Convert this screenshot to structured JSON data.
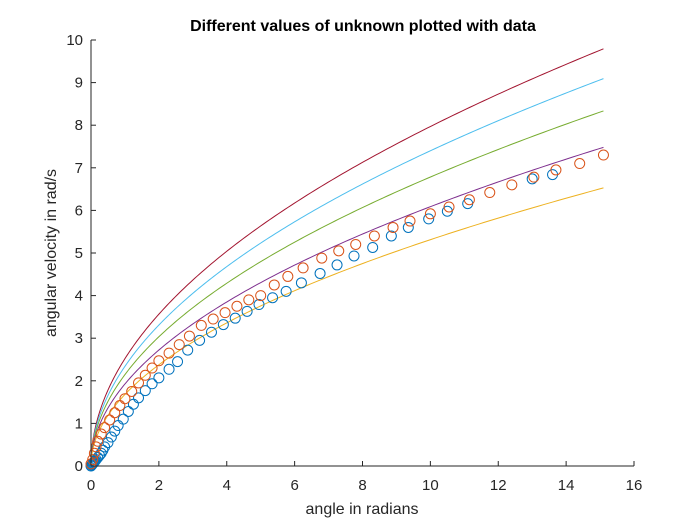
{
  "chart_data": {
    "type": "scatter",
    "title": "Different values of unknown plotted with data",
    "xlabel": "angle in radians",
    "ylabel": "angular velocity in rad/s",
    "xlim": [
      0,
      16
    ],
    "ylim": [
      0,
      10
    ],
    "xticks": [
      0,
      2,
      4,
      6,
      8,
      10,
      12,
      14,
      16
    ],
    "yticks": [
      0,
      1,
      2,
      3,
      4,
      5,
      6,
      7,
      8,
      9,
      10
    ],
    "grid": false,
    "box": false,
    "series": [
      {
        "kind": "scatter",
        "marker": "circle",
        "color": "#0072BD",
        "x": [
          0.0,
          0.02,
          0.04,
          0.06,
          0.08,
          0.1,
          0.12,
          0.15,
          0.2,
          0.25,
          0.3,
          0.35,
          0.4,
          0.5,
          0.6,
          0.7,
          0.8,
          0.95,
          1.1,
          1.25,
          1.4,
          1.6,
          1.8,
          2.0,
          2.3,
          2.55,
          2.85,
          3.2,
          3.55,
          3.9,
          4.25,
          4.6,
          4.95,
          5.35,
          5.75,
          6.2,
          6.75,
          7.25,
          7.75,
          8.3,
          8.85,
          9.35,
          9.95,
          10.5,
          11.1,
          13.0,
          13.6
        ],
        "y": [
          0.0,
          0.02,
          0.04,
          0.06,
          0.08,
          0.1,
          0.12,
          0.15,
          0.2,
          0.25,
          0.3,
          0.37,
          0.45,
          0.55,
          0.68,
          0.82,
          0.95,
          1.1,
          1.28,
          1.45,
          1.6,
          1.77,
          1.93,
          2.07,
          2.27,
          2.45,
          2.72,
          2.95,
          3.14,
          3.32,
          3.47,
          3.63,
          3.79,
          3.95,
          4.1,
          4.3,
          4.52,
          4.72,
          4.93,
          5.13,
          5.4,
          5.6,
          5.8,
          5.98,
          6.16,
          6.74,
          6.84
        ]
      },
      {
        "kind": "scatter",
        "marker": "circle",
        "color": "#D95319",
        "x": [
          0.0,
          0.05,
          0.1,
          0.15,
          0.2,
          0.3,
          0.4,
          0.55,
          0.7,
          0.85,
          1.0,
          1.2,
          1.4,
          1.6,
          1.8,
          2.0,
          2.3,
          2.6,
          2.9,
          3.25,
          3.6,
          3.95,
          4.3,
          4.65,
          5.0,
          5.4,
          5.8,
          6.25,
          6.8,
          7.3,
          7.8,
          8.35,
          8.9,
          9.4,
          10.0,
          10.55,
          11.15,
          11.75,
          12.4,
          13.05,
          13.7,
          14.4,
          15.1
        ],
        "y": [
          0.05,
          0.15,
          0.3,
          0.45,
          0.58,
          0.75,
          0.9,
          1.08,
          1.25,
          1.42,
          1.58,
          1.75,
          1.95,
          2.13,
          2.3,
          2.47,
          2.65,
          2.85,
          3.05,
          3.3,
          3.45,
          3.6,
          3.75,
          3.9,
          4.0,
          4.25,
          4.45,
          4.65,
          4.88,
          5.05,
          5.2,
          5.4,
          5.6,
          5.75,
          5.92,
          6.08,
          6.25,
          6.42,
          6.6,
          6.78,
          6.95,
          7.1,
          7.3
        ]
      },
      {
        "kind": "line",
        "color": "#A2142F",
        "a": 2.52,
        "xmax": 15.1
      },
      {
        "kind": "line",
        "color": "#4DBEEE",
        "a": 2.34,
        "xmax": 15.1
      },
      {
        "kind": "line",
        "color": "#77AC30",
        "a": 2.145,
        "xmax": 15.1
      },
      {
        "kind": "line",
        "color": "#7E2F8E",
        "a": 1.925,
        "xmax": 15.1
      },
      {
        "kind": "line",
        "color": "#EDB120",
        "a": 1.68,
        "xmax": 15.1
      }
    ]
  }
}
